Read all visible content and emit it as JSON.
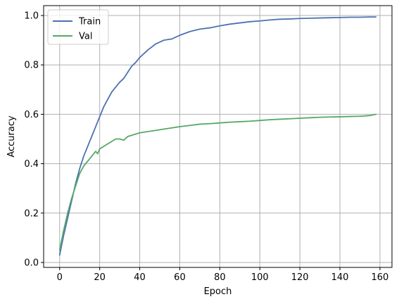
{
  "chart_data": {
    "type": "line",
    "title": "",
    "xlabel": "Epoch",
    "ylabel": "Accuracy",
    "xlim": [
      -8,
      166
    ],
    "ylim": [
      -0.02,
      1.04
    ],
    "xticks": [
      0,
      20,
      40,
      60,
      80,
      100,
      120,
      140,
      160
    ],
    "yticks": [
      0.0,
      0.2,
      0.4,
      0.6,
      0.8,
      1.0
    ],
    "grid": true,
    "legend_position": "top-left",
    "series": [
      {
        "name": "Train",
        "color": "#4c72b0",
        "x": [
          0,
          2,
          4,
          6,
          8,
          10,
          12,
          14,
          16,
          18,
          20,
          22,
          24,
          26,
          28,
          30,
          32,
          34,
          36,
          38,
          40,
          44,
          48,
          52,
          56,
          60,
          65,
          70,
          75,
          80,
          85,
          90,
          95,
          100,
          105,
          110,
          115,
          120,
          125,
          130,
          135,
          140,
          145,
          150,
          155,
          158
        ],
        "values": [
          0.03,
          0.11,
          0.18,
          0.25,
          0.32,
          0.38,
          0.43,
          0.47,
          0.51,
          0.55,
          0.59,
          0.63,
          0.66,
          0.69,
          0.71,
          0.73,
          0.745,
          0.77,
          0.795,
          0.81,
          0.83,
          0.86,
          0.885,
          0.9,
          0.905,
          0.92,
          0.935,
          0.945,
          0.95,
          0.958,
          0.965,
          0.97,
          0.975,
          0.978,
          0.982,
          0.985,
          0.986,
          0.988,
          0.989,
          0.99,
          0.991,
          0.992,
          0.993,
          0.993,
          0.994,
          0.994
        ]
      },
      {
        "name": "Val",
        "color": "#55a868",
        "x": [
          0,
          2,
          4,
          6,
          8,
          10,
          12,
          14,
          16,
          18,
          19,
          20,
          22,
          24,
          26,
          28,
          30,
          32,
          34,
          36,
          38,
          40,
          44,
          48,
          52,
          56,
          60,
          65,
          70,
          75,
          80,
          85,
          90,
          95,
          100,
          105,
          110,
          115,
          120,
          125,
          130,
          135,
          140,
          145,
          150,
          155,
          158
        ],
        "values": [
          0.05,
          0.13,
          0.2,
          0.26,
          0.31,
          0.36,
          0.39,
          0.41,
          0.43,
          0.45,
          0.44,
          0.46,
          0.47,
          0.48,
          0.49,
          0.5,
          0.5,
          0.495,
          0.51,
          0.515,
          0.52,
          0.525,
          0.53,
          0.535,
          0.54,
          0.545,
          0.55,
          0.555,
          0.56,
          0.562,
          0.565,
          0.568,
          0.57,
          0.572,
          0.575,
          0.578,
          0.58,
          0.582,
          0.584,
          0.586,
          0.588,
          0.589,
          0.59,
          0.591,
          0.592,
          0.595,
          0.6
        ]
      }
    ]
  }
}
